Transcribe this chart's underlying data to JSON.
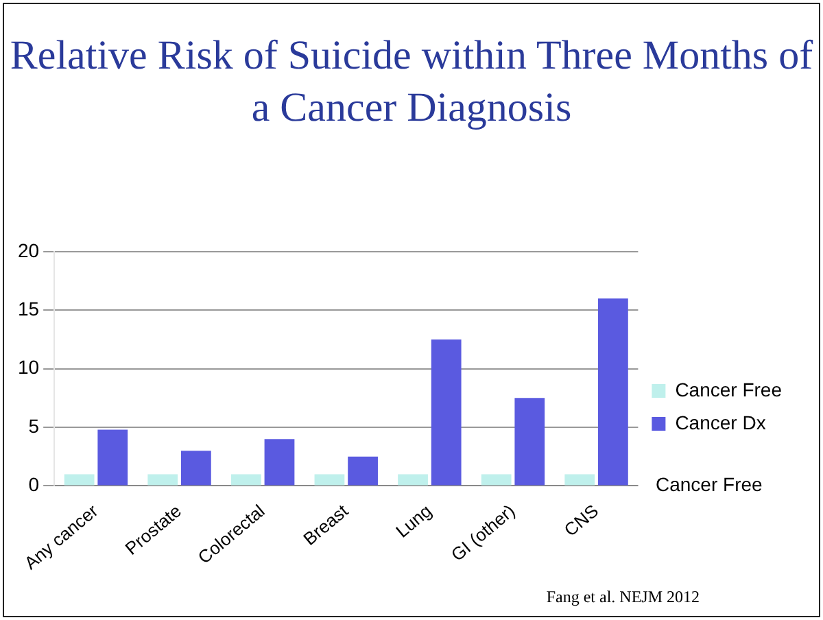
{
  "chart_data": {
    "type": "bar",
    "title": "Relative Risk of Suicide within Three Months of a Cancer Diagnosis",
    "categories": [
      "Any cancer",
      "Prostate",
      "Colorectal",
      "Breast",
      "Lung",
      "GI (other)",
      "CNS"
    ],
    "series": [
      {
        "name": "Cancer Free",
        "color": "#bff0ec",
        "values": [
          1,
          1,
          1,
          1,
          1,
          1,
          1
        ]
      },
      {
        "name": "Cancer Dx",
        "color": "#5a5ae0",
        "values": [
          4.8,
          3,
          4,
          2.5,
          12.5,
          7.5,
          16
        ]
      }
    ],
    "ylim": [
      0,
      20
    ],
    "yticks": [
      0,
      5,
      10,
      15,
      20
    ],
    "grid": "y",
    "legend": "right",
    "annotations": [
      "Cancer Free",
      "Fang et al. NEJM 2012"
    ]
  }
}
